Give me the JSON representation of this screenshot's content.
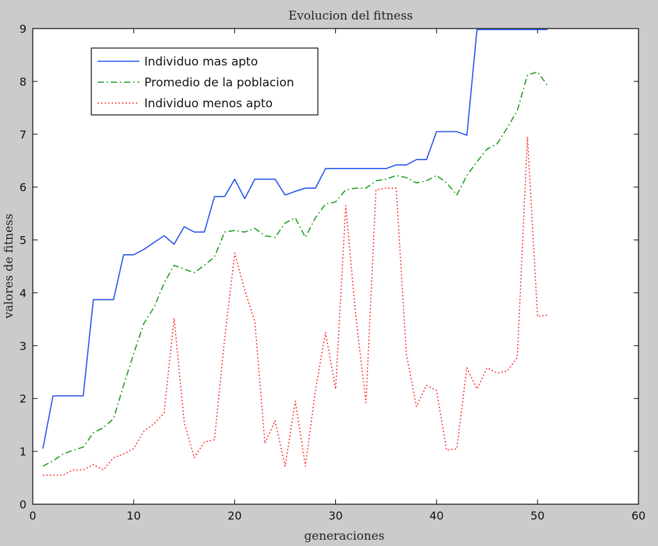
{
  "chart_data": {
    "type": "line",
    "title": "Evolucion del fitness",
    "xlabel": "generaciones",
    "ylabel": "valores de fitness",
    "xlim": [
      0,
      60
    ],
    "ylim": [
      0,
      9
    ],
    "xticks": [
      0,
      10,
      20,
      30,
      40,
      50,
      60
    ],
    "yticks": [
      0,
      1,
      2,
      3,
      4,
      5,
      6,
      7,
      8,
      9
    ],
    "grid": false,
    "legend_position": "top-left",
    "x": [
      1,
      2,
      3,
      4,
      5,
      6,
      7,
      8,
      9,
      10,
      11,
      12,
      13,
      14,
      15,
      16,
      17,
      18,
      19,
      20,
      21,
      22,
      23,
      24,
      25,
      26,
      27,
      28,
      29,
      30,
      31,
      32,
      33,
      34,
      35,
      36,
      37,
      38,
      39,
      40,
      41,
      42,
      43,
      44,
      45,
      46,
      47,
      48,
      49,
      50,
      51
    ],
    "series": [
      {
        "name": "Individuo mas apto",
        "color": "#1f4ff0",
        "style": "solid",
        "values": [
          1.05,
          2.05,
          2.05,
          2.05,
          2.05,
          3.87,
          3.87,
          3.87,
          4.72,
          4.72,
          4.82,
          4.95,
          5.08,
          4.92,
          5.25,
          5.15,
          5.15,
          5.82,
          5.82,
          6.15,
          5.78,
          6.15,
          6.15,
          6.15,
          5.85,
          5.92,
          5.98,
          5.98,
          6.35,
          6.35,
          6.35,
          6.35,
          6.35,
          6.35,
          6.35,
          6.42,
          6.42,
          6.52,
          6.52,
          7.05,
          7.05,
          7.05,
          6.98,
          8.98,
          8.98,
          8.98,
          8.98,
          8.98,
          8.98,
          8.98,
          8.98
        ]
      },
      {
        "name": "Promedio de la poblacion",
        "color": "#1a9a1a",
        "style": "dashdot",
        "values": [
          0.72,
          0.82,
          0.95,
          1.02,
          1.08,
          1.35,
          1.45,
          1.62,
          2.25,
          2.85,
          3.42,
          3.72,
          4.18,
          4.52,
          4.45,
          4.38,
          4.52,
          4.68,
          5.15,
          5.18,
          5.15,
          5.22,
          5.08,
          5.05,
          5.32,
          5.42,
          5.05,
          5.42,
          5.68,
          5.72,
          5.95,
          5.98,
          5.98,
          6.12,
          6.15,
          6.22,
          6.18,
          6.08,
          6.12,
          6.22,
          6.08,
          5.85,
          6.22,
          6.48,
          6.72,
          6.82,
          7.12,
          7.45,
          8.12,
          8.18,
          7.92
        ]
      },
      {
        "name": "Individuo menos apto",
        "color": "#ff2a2a",
        "style": "dotted",
        "values": [
          0.55,
          0.55,
          0.55,
          0.65,
          0.65,
          0.75,
          0.65,
          0.88,
          0.95,
          1.05,
          1.38,
          1.52,
          1.72,
          3.52,
          1.55,
          0.88,
          1.18,
          1.22,
          3.12,
          4.75,
          4.05,
          3.45,
          1.15,
          1.58,
          0.72,
          1.95,
          0.72,
          2.15,
          3.25,
          2.18,
          5.65,
          3.55,
          1.92,
          5.95,
          5.98,
          5.98,
          2.85,
          1.85,
          2.25,
          2.15,
          1.02,
          1.05,
          2.58,
          2.18,
          2.58,
          2.48,
          2.52,
          2.78,
          6.95,
          3.55,
          3.58
        ]
      }
    ]
  }
}
